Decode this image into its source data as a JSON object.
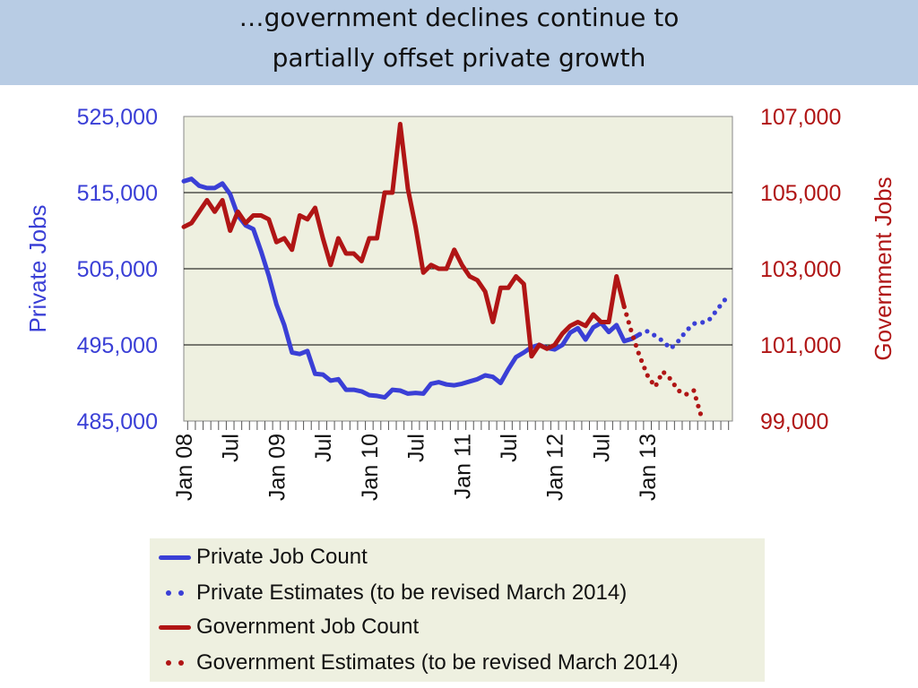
{
  "title": {
    "line1": "…government declines continue to",
    "line2": "partially offset private growth"
  },
  "colors": {
    "title_band": "#b8cce4",
    "plot_bg": "#eef0e0",
    "private": "#3a3fd6",
    "government": "#b01515"
  },
  "chart_data": {
    "type": "line",
    "x_unit": "month index (0 = Jan 2008)",
    "y_left": {
      "label": "Private Jobs",
      "range": [
        485000,
        525000
      ],
      "ticks": [
        "525,000",
        "515,000",
        "505,000",
        "495,000",
        "485,000"
      ]
    },
    "y_right": {
      "label": "Government Jobs",
      "range": [
        99000,
        107000
      ],
      "ticks": [
        "107,000",
        "105,000",
        "103,000",
        "101,000",
        "99,000"
      ]
    },
    "x_ticks": [
      {
        "label": "Jan 08",
        "month": 0
      },
      {
        "label": "Jul",
        "month": 6
      },
      {
        "label": "Jan 09",
        "month": 12
      },
      {
        "label": "Jul",
        "month": 18
      },
      {
        "label": "Jan 10",
        "month": 24
      },
      {
        "label": "Jul",
        "month": 30
      },
      {
        "label": "Jan 11",
        "month": 36
      },
      {
        "label": "Jul",
        "month": 42
      },
      {
        "label": "Jan 12",
        "month": 48
      },
      {
        "label": "Jul",
        "month": 54
      },
      {
        "label": "Jan 13",
        "month": 60
      }
    ],
    "grid": "horizontal",
    "series": [
      {
        "name": "Private Job Count",
        "axis": "left",
        "style": "solid",
        "start_month": 0,
        "values": [
          516500,
          516800,
          515900,
          515600,
          515600,
          516200,
          514800,
          512000,
          510700,
          510200,
          507300,
          504100,
          500300,
          497600,
          494000,
          493800,
          494200,
          491200,
          491100,
          490300,
          490500,
          489100,
          489100,
          488900,
          488400,
          488300,
          488100,
          489100,
          489000,
          488600,
          488700,
          488600,
          489900,
          490100,
          489800,
          489700,
          489900,
          490200,
          490500,
          491000,
          490800,
          490000,
          491800,
          493400,
          494000,
          494700,
          495000,
          494600,
          494400,
          495000,
          496600,
          497200,
          495700,
          497300,
          497900,
          496700,
          497600,
          495500,
          495800,
          496400
        ]
      },
      {
        "name": "Private Estimates (to be revised March 2014)",
        "axis": "left",
        "style": "dotted",
        "start_month": 59,
        "values": [
          496400,
          496800,
          496200,
          495500,
          494500,
          495500,
          496800,
          497800,
          497900,
          498300,
          499600,
          500900
        ]
      },
      {
        "name": "Government Job Count",
        "axis": "right",
        "style": "solid",
        "start_month": 0,
        "values": [
          104100,
          104200,
          104500,
          104800,
          104500,
          104800,
          104000,
          104500,
          104200,
          104400,
          104400,
          104300,
          103700,
          103800,
          103500,
          104400,
          104300,
          104600,
          103800,
          103100,
          103800,
          103400,
          103400,
          103200,
          103800,
          103800,
          105000,
          105000,
          106800,
          105100,
          104100,
          102900,
          103100,
          103000,
          103000,
          103500,
          103100,
          102800,
          102700,
          102400,
          101600,
          102500,
          102500,
          102800,
          102600,
          100700,
          101000,
          100900,
          101000,
          101300,
          101500,
          101600,
          101500,
          101800,
          101600,
          101600,
          102800,
          102000
        ]
      },
      {
        "name": "Government Estimates (to be revised March 2014)",
        "axis": "right",
        "style": "dotted",
        "start_month": 57,
        "values": [
          102000,
          101300,
          100700,
          100200,
          99900,
          100300,
          100100,
          99800,
          99700,
          99800,
          99100
        ]
      }
    ],
    "legend": {
      "placement": "bottom",
      "entries": [
        "Private Job Count",
        "Private Estimates (to be revised March 2014)",
        "Government Job Count",
        "Government Estimates (to be revised March 2014)"
      ]
    }
  }
}
